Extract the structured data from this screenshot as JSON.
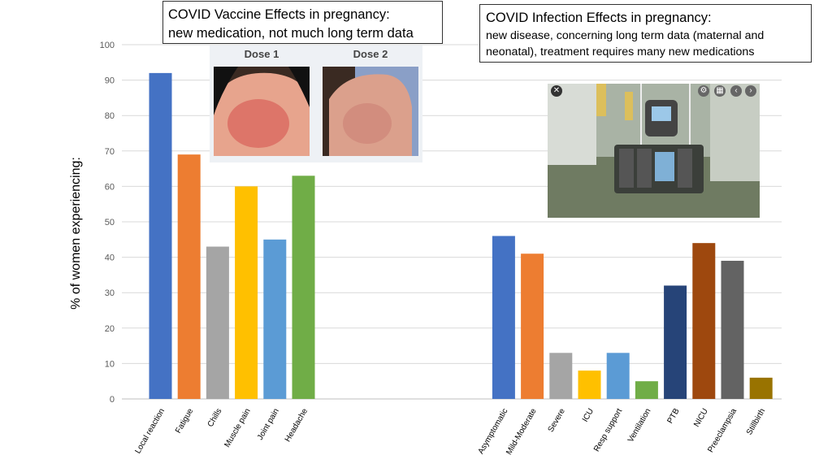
{
  "vaccine_box": {
    "line1": "COVID Vaccine Effects in pregnancy:",
    "line2": "new medication, not much long term data"
  },
  "infection_box": {
    "line1": "COVID Infection Effects in pregnancy:",
    "line2": "new disease, concerning long term data (maternal and neonatal), treatment requires many new medications"
  },
  "photos": {
    "dose1_label": "Dose 1",
    "dose2_label": "Dose 2"
  },
  "chart_data": {
    "type": "bar",
    "title": "",
    "xlabel": "",
    "ylabel": "% of women experiencing:",
    "ylim": [
      0,
      100
    ],
    "yticks": [
      0,
      10,
      20,
      30,
      40,
      50,
      60,
      70,
      80,
      90,
      100
    ],
    "grid": true,
    "groups": [
      {
        "name": "vaccine",
        "categories": [
          "Local reaction",
          "Fatigue",
          "Chills",
          "Muscle pain",
          "Joint pain",
          "Headache"
        ],
        "values": [
          92,
          69,
          43,
          60,
          45,
          63
        ],
        "colors": [
          "#4472C4",
          "#ED7D31",
          "#A5A5A5",
          "#FFC000",
          "#5B9BD5",
          "#70AD47"
        ]
      },
      {
        "name": "infection",
        "categories": [
          "Asymptomatic",
          "Mild-Moderate",
          "Severe",
          "ICU",
          "Resp support",
          "Ventilation",
          "PTB",
          "NICU",
          "Preeclampsia",
          "Stillbirth"
        ],
        "values": [
          46,
          41,
          13,
          8,
          13,
          5,
          32,
          44,
          39,
          6
        ],
        "colors": [
          "#4472C4",
          "#ED7D31",
          "#A5A5A5",
          "#FFC000",
          "#5B9BD5",
          "#70AD47",
          "#264478",
          "#9E480E",
          "#636363",
          "#997300"
        ]
      }
    ]
  }
}
